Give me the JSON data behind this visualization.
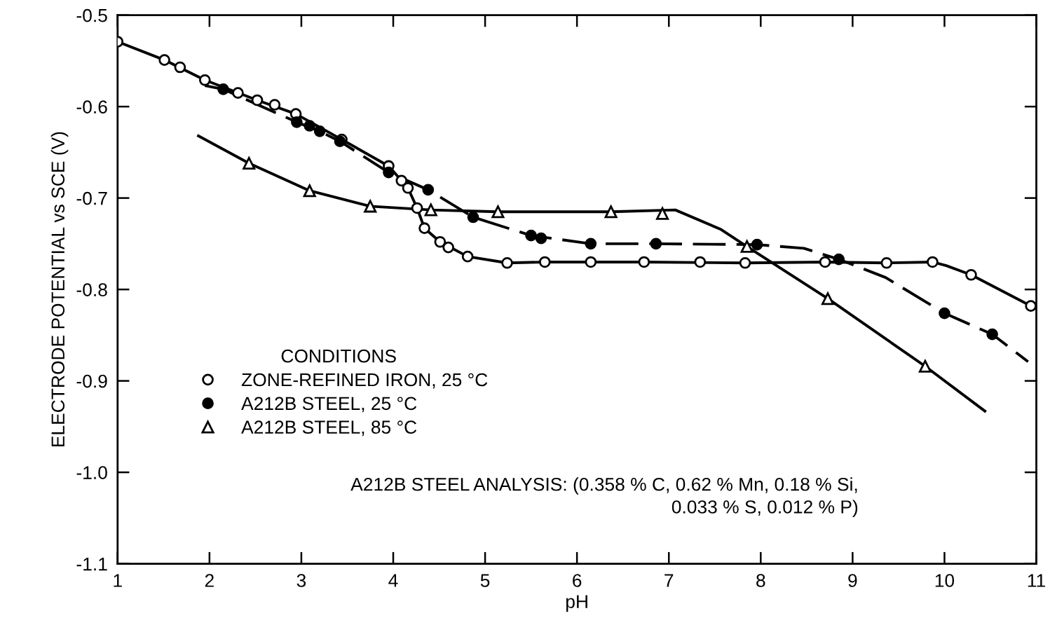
{
  "chart_data": {
    "type": "scatter",
    "xlabel": "pH",
    "ylabel": "ELECTRODE POTENTIAL vs SCE (V)",
    "legend_title": "CONDITIONS",
    "xlim": [
      1,
      11
    ],
    "ylim": [
      -1.1,
      -0.5
    ],
    "xticks": [
      1,
      2,
      3,
      4,
      5,
      6,
      7,
      8,
      9,
      10,
      11
    ],
    "yticks": [
      -1.1,
      {
        "value": -1.0,
        "label": "-1.0"
      },
      -0.9,
      -0.8,
      -0.7,
      -0.6,
      -0.5
    ],
    "grid": false,
    "legend": "bottom left",
    "series": [
      {
        "name": "ZONE-REFINED IRON, 25 °C",
        "marker": "circle",
        "color": "#ffffff",
        "x": [
          1.0,
          1.51,
          1.68,
          1.95,
          2.31,
          2.52,
          2.71,
          2.94,
          3.44,
          3.95,
          4.09,
          4.16,
          4.26,
          4.34,
          4.51,
          4.6,
          4.81,
          5.24,
          5.65,
          6.15,
          6.73,
          7.34,
          7.83,
          8.7,
          9.37,
          9.87,
          10.29,
          10.94
        ],
        "values": [
          -0.529,
          -0.549,
          -0.557,
          -0.571,
          -0.585,
          -0.593,
          -0.598,
          -0.608,
          -0.636,
          -0.665,
          -0.681,
          -0.689,
          -0.711,
          -0.733,
          -0.748,
          -0.754,
          -0.764,
          -0.771,
          -0.77,
          -0.77,
          -0.77,
          -0.77,
          -0.771,
          -0.77,
          -0.771,
          -0.77,
          -0.784,
          -0.818
        ]
      },
      {
        "name": "A212B STEEL, 25 °C",
        "marker": "circle",
        "color": "#000000",
        "x": [
          2.15,
          2.95,
          3.09,
          3.2,
          3.42,
          3.95,
          4.38,
          4.87,
          5.5,
          5.61,
          6.15,
          6.86,
          7.96,
          8.85,
          10.0,
          10.52
        ],
        "values": [
          -0.581,
          -0.617,
          -0.621,
          -0.627,
          -0.638,
          -0.672,
          -0.691,
          -0.721,
          -0.741,
          -0.744,
          -0.75,
          -0.75,
          -0.751,
          -0.767,
          -0.826,
          -0.849
        ]
      },
      {
        "name": "A212B STEEL, 85 °C",
        "marker": "triangle",
        "color": "#ffffff",
        "x": [
          2.43,
          3.09,
          3.75,
          4.41,
          5.14,
          6.37,
          6.93,
          7.85,
          8.73,
          9.79
        ],
        "values": [
          -0.662,
          -0.692,
          -0.709,
          -0.713,
          -0.715,
          -0.715,
          -0.717,
          -0.753,
          -0.81,
          -0.884
        ]
      },
      {
        "type": "line",
        "line_style": "solid",
        "color": "#000000",
        "x": [
          1.0,
          1.51,
          1.95,
          2.52,
          2.94,
          3.44,
          3.95,
          4.16,
          4.26,
          4.34,
          4.51,
          4.81,
          5.24,
          5.65,
          6.73,
          7.83,
          8.7,
          9.37,
          9.87,
          10.02,
          10.29,
          10.94
        ],
        "values": [
          -0.529,
          -0.549,
          -0.571,
          -0.593,
          -0.608,
          -0.636,
          -0.665,
          -0.689,
          -0.711,
          -0.733,
          -0.748,
          -0.764,
          -0.771,
          -0.77,
          -0.77,
          -0.771,
          -0.77,
          -0.771,
          -0.77,
          -0.774,
          -0.784,
          -0.818
        ]
      },
      {
        "type": "line",
        "line_style": "dashed",
        "color": "#000000",
        "x": [
          1.95,
          2.15,
          2.95,
          3.2,
          3.42,
          3.95,
          4.38,
          4.87,
          5.5,
          6.15,
          6.86,
          7.96,
          8.47,
          8.85,
          9.36,
          10.0,
          10.52,
          10.91
        ],
        "values": [
          -0.577,
          -0.581,
          -0.617,
          -0.627,
          -0.638,
          -0.672,
          -0.691,
          -0.721,
          -0.741,
          -0.75,
          -0.75,
          -0.751,
          -0.755,
          -0.767,
          -0.787,
          -0.826,
          -0.849,
          -0.879
        ]
      },
      {
        "type": "line",
        "line_style": "solid",
        "color": "#000000",
        "x": [
          1.88,
          2.43,
          3.09,
          3.75,
          4.41,
          5.14,
          6.37,
          7.07,
          7.56,
          7.85,
          8.73,
          9.79,
          10.44
        ],
        "values": [
          -0.632,
          -0.662,
          -0.692,
          -0.709,
          -0.713,
          -0.715,
          -0.715,
          -0.713,
          -0.734,
          -0.753,
          -0.81,
          -0.884,
          -0.933
        ]
      }
    ],
    "annotations": [
      "A212B STEEL ANALYSIS: (0.358 % C, 0.62 % Mn, 0.18 % Si,\n0.033 % S, 0.012 % P)"
    ]
  }
}
